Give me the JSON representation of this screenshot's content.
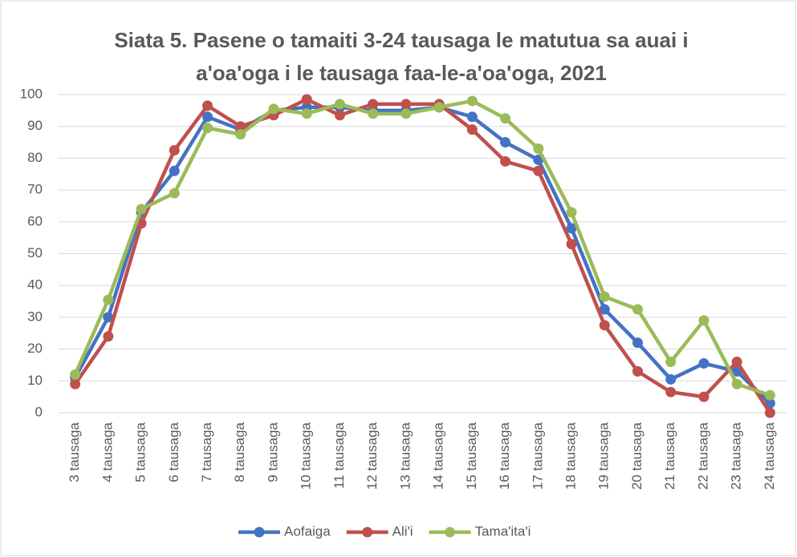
{
  "chart_data": {
    "type": "line",
    "title": [
      "Siata 5. Pasene o tamaiti 3-24 tausaga le matutua sa auai i",
      "a'oa'oga i le tausaga faa-le-a'oa'oga, 2021"
    ],
    "categories": [
      "3 tausaga",
      "4 tausaga",
      "5 tausaga",
      "6 tausaga",
      "7 tausaga",
      "8 tausaga",
      "9 tausaga",
      "10 tausaga",
      "11 tausaga",
      "12 tausaga",
      "13 tausaga",
      "14 tausaga",
      "15 tausaga",
      "16 tausaga",
      "17 tausaga",
      "18 tausaga",
      "19 tausaga",
      "20 tausaga",
      "21 tausaga",
      "22 tausaga",
      "23 tausaga",
      "24 tausaga"
    ],
    "series": [
      {
        "name": "Aofaiga",
        "color": "#4472c4",
        "values": [
          11,
          30,
          63,
          76,
          93,
          89,
          95,
          96,
          96,
          95,
          95,
          96,
          93,
          85,
          79.5,
          58,
          32.5,
          22,
          10.5,
          15.5,
          13,
          3
        ]
      },
      {
        "name": "Ali'i",
        "color": "#c0504d",
        "values": [
          9,
          24,
          59.5,
          82.5,
          96.5,
          90,
          93.5,
          98.5,
          93.5,
          97,
          97,
          97,
          89,
          79,
          76,
          53,
          27.5,
          13,
          6.5,
          5,
          16,
          0
        ]
      },
      {
        "name": "Tama'ita'i",
        "color": "#9bbb59",
        "values": [
          12,
          35.5,
          64,
          69,
          89.5,
          87.5,
          95.5,
          94,
          97,
          94,
          94,
          96,
          98,
          92.5,
          83,
          63,
          36.5,
          32.5,
          16,
          29,
          9,
          5.5
        ]
      }
    ],
    "ylim": [
      0,
      100
    ],
    "yticks": [
      0,
      10,
      20,
      30,
      40,
      50,
      60,
      70,
      80,
      90,
      100
    ],
    "grid": true,
    "legend": "bottom"
  }
}
